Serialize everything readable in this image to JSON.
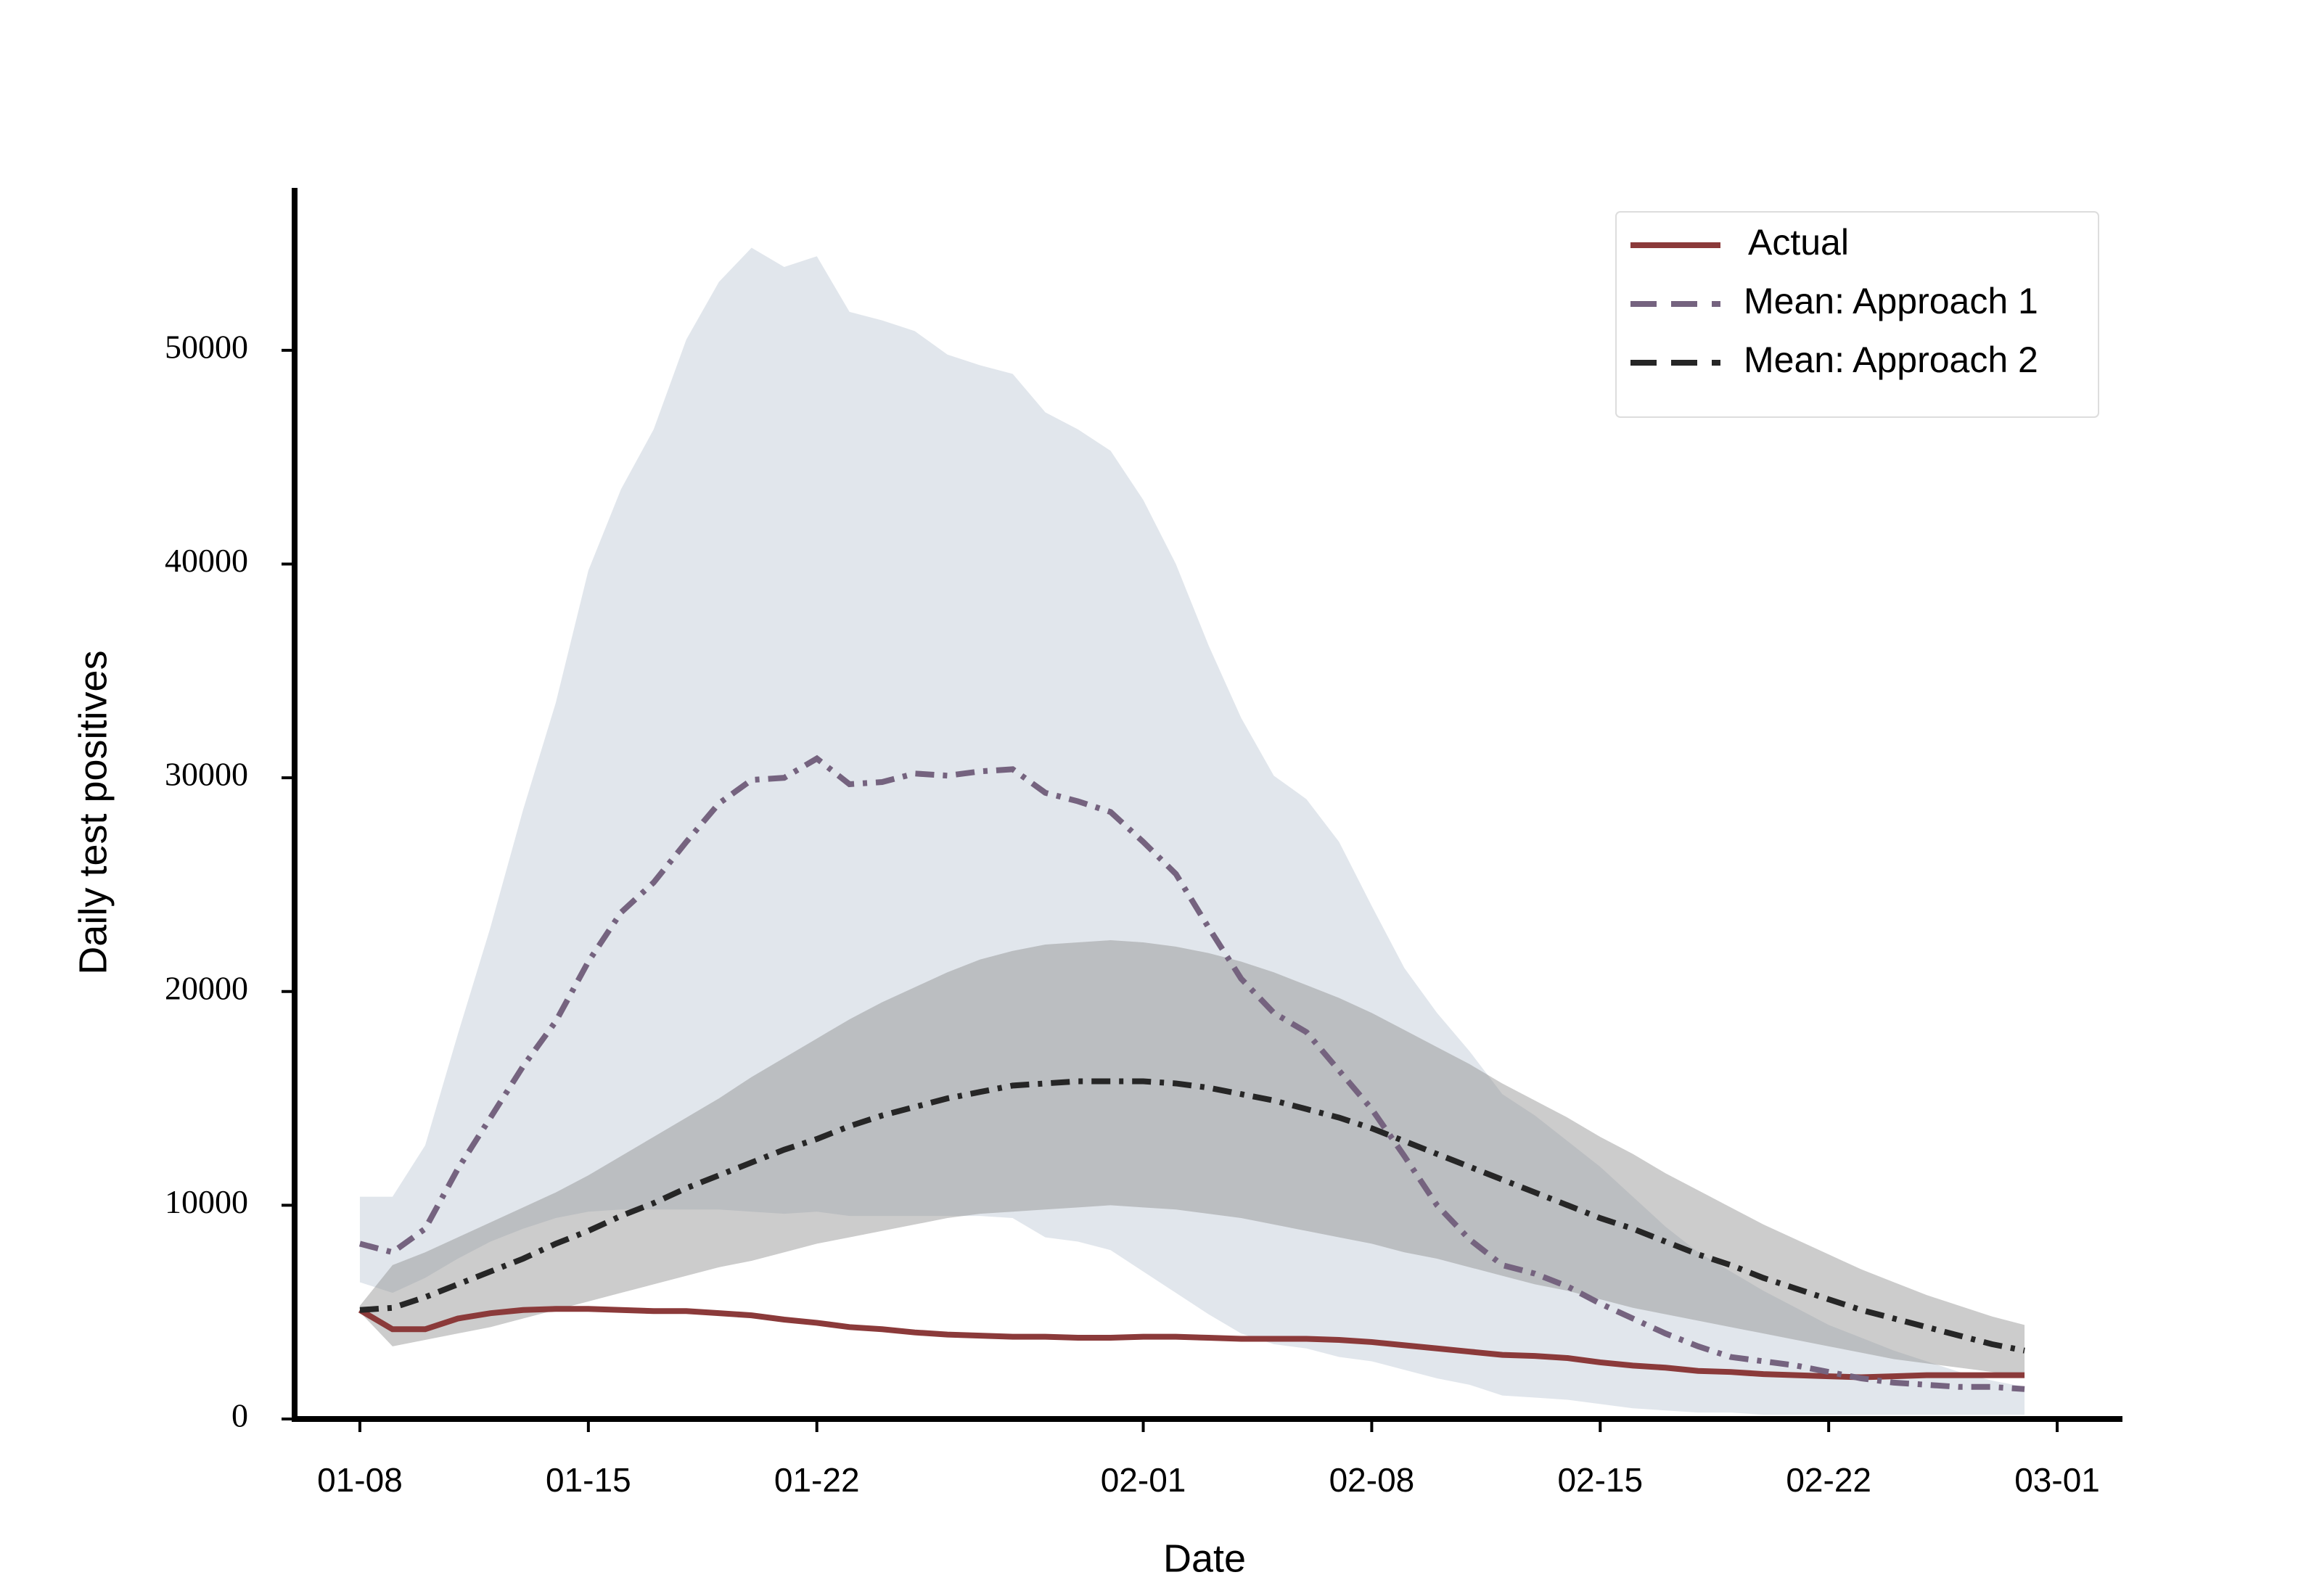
{
  "chart_data": {
    "type": "line",
    "xlabel": "Date",
    "ylabel": "Daily test positives",
    "x": [
      "01-08",
      "01-09",
      "01-10",
      "01-11",
      "01-12",
      "01-13",
      "01-14",
      "01-15",
      "01-16",
      "01-17",
      "01-18",
      "01-19",
      "01-20",
      "01-21",
      "01-22",
      "01-23",
      "01-24",
      "01-25",
      "01-26",
      "01-27",
      "01-28",
      "01-29",
      "01-30",
      "01-31",
      "02-01",
      "02-02",
      "02-03",
      "02-04",
      "02-05",
      "02-06",
      "02-07",
      "02-08",
      "02-09",
      "02-10",
      "02-11",
      "02-12",
      "02-13",
      "02-14",
      "02-15",
      "02-16",
      "02-17",
      "02-18",
      "02-19",
      "02-20",
      "02-21",
      "02-22",
      "02-23",
      "02-24",
      "02-25",
      "02-26",
      "02-27",
      "02-28"
    ],
    "xlim": [
      "01-06",
      "03-03"
    ],
    "xticks": [
      "01-08",
      "01-15",
      "01-22",
      "02-01",
      "02-08",
      "02-15",
      "02-22",
      "03-01"
    ],
    "ylim": [
      0,
      57600
    ],
    "yticks": [
      0,
      10000,
      20000,
      30000,
      40000,
      50000
    ],
    "legend": "upper right",
    "bands": [
      {
        "color": "#c9d1dc",
        "alpha": 0.55,
        "lower": [
          6400,
          5900,
          6600,
          7500,
          8300,
          8900,
          9400,
          9700,
          9800,
          9800,
          9800,
          9800,
          9700,
          9600,
          9700,
          9500,
          9500,
          9500,
          9500,
          9500,
          9400,
          8500,
          8300,
          7900,
          6900,
          5900,
          4900,
          4000,
          3500,
          3300,
          2900,
          2700,
          2300,
          1900,
          1600,
          1100,
          1000,
          900,
          700,
          500,
          400,
          300,
          300,
          200,
          200,
          200,
          200,
          200,
          200,
          200,
          200,
          200
        ],
        "upper": [
          10400,
          10400,
          12800,
          18000,
          23000,
          28500,
          33500,
          39700,
          43500,
          46300,
          50500,
          53200,
          54800,
          53900,
          54400,
          51800,
          51400,
          50900,
          49800,
          49300,
          48900,
          47100,
          46300,
          45300,
          43000,
          40000,
          36200,
          32800,
          30100,
          29000,
          27000,
          24000,
          21100,
          19000,
          17200,
          15200,
          14200,
          13000,
          11800,
          10400,
          9000,
          7800,
          6900,
          6000,
          5200,
          4400,
          3800,
          3200,
          2700,
          2200,
          1800,
          1500
        ]
      },
      {
        "color": "#8f8f8f",
        "alpha": 0.45,
        "lower": [
          5000,
          3400,
          3700,
          4000,
          4300,
          4700,
          5100,
          5500,
          5900,
          6300,
          6700,
          7100,
          7400,
          7800,
          8200,
          8500,
          8800,
          9100,
          9400,
          9600,
          9700,
          9800,
          9900,
          10000,
          9900,
          9800,
          9600,
          9400,
          9100,
          8800,
          8500,
          8200,
          7800,
          7500,
          7100,
          6700,
          6300,
          6000,
          5600,
          5200,
          4900,
          4600,
          4300,
          4000,
          3700,
          3400,
          3100,
          2800,
          2600,
          2400,
          2200,
          2000
        ],
        "upper": [
          5300,
          7200,
          7800,
          8500,
          9200,
          9900,
          10600,
          11400,
          12300,
          13200,
          14100,
          15000,
          16000,
          16900,
          17800,
          18700,
          19500,
          20200,
          20900,
          21500,
          21900,
          22200,
          22300,
          22400,
          22300,
          22100,
          21800,
          21400,
          20900,
          20300,
          19700,
          19000,
          18200,
          17400,
          16600,
          15700,
          14900,
          14100,
          13200,
          12400,
          11500,
          10700,
          9900,
          9100,
          8400,
          7700,
          7000,
          6400,
          5800,
          5300,
          4800,
          4400
        ]
      }
    ],
    "series": [
      {
        "name": "Actual",
        "color": "#8b3a3a",
        "linestyle": "solid",
        "values": [
          5100,
          4200,
          4200,
          4700,
          4950,
          5100,
          5150,
          5150,
          5100,
          5050,
          5050,
          4950,
          4850,
          4650,
          4500,
          4300,
          4200,
          4050,
          3950,
          3900,
          3850,
          3850,
          3800,
          3800,
          3850,
          3850,
          3800,
          3750,
          3750,
          3750,
          3700,
          3600,
          3450,
          3300,
          3150,
          3000,
          2950,
          2850,
          2650,
          2500,
          2400,
          2250,
          2200,
          2100,
          2050,
          2000,
          1950,
          2000,
          2050,
          2050,
          2050,
          2050
        ]
      },
      {
        "name": "Mean: Approach 1",
        "color": "#75637f",
        "linestyle": "dashdot",
        "values": [
          8200,
          7800,
          8900,
          11700,
          14100,
          16500,
          18600,
          21400,
          23700,
          25100,
          27000,
          28800,
          29900,
          30000,
          30900,
          29700,
          29800,
          30200,
          30100,
          30300,
          30400,
          29300,
          28900,
          28400,
          27000,
          25500,
          23000,
          20600,
          19000,
          18100,
          16300,
          14500,
          12300,
          10000,
          8400,
          7200,
          6800,
          6200,
          5400,
          4700,
          4000,
          3400,
          2900,
          2700,
          2500,
          2200,
          1900,
          1700,
          1600,
          1500,
          1500,
          1400
        ]
      },
      {
        "name": "Mean: Approach 2",
        "color": "#262626",
        "linestyle": "dashdot",
        "values": [
          5100,
          5200,
          5700,
          6300,
          6900,
          7500,
          8200,
          8800,
          9500,
          10100,
          10800,
          11400,
          12000,
          12600,
          13100,
          13700,
          14200,
          14600,
          15000,
          15300,
          15600,
          15700,
          15800,
          15800,
          15800,
          15700,
          15500,
          15200,
          14900,
          14500,
          14100,
          13600,
          13000,
          12400,
          11800,
          11200,
          10600,
          10000,
          9400,
          8900,
          8300,
          7700,
          7200,
          6600,
          6100,
          5600,
          5100,
          4700,
          4300,
          3900,
          3500,
          3200
        ]
      }
    ]
  }
}
